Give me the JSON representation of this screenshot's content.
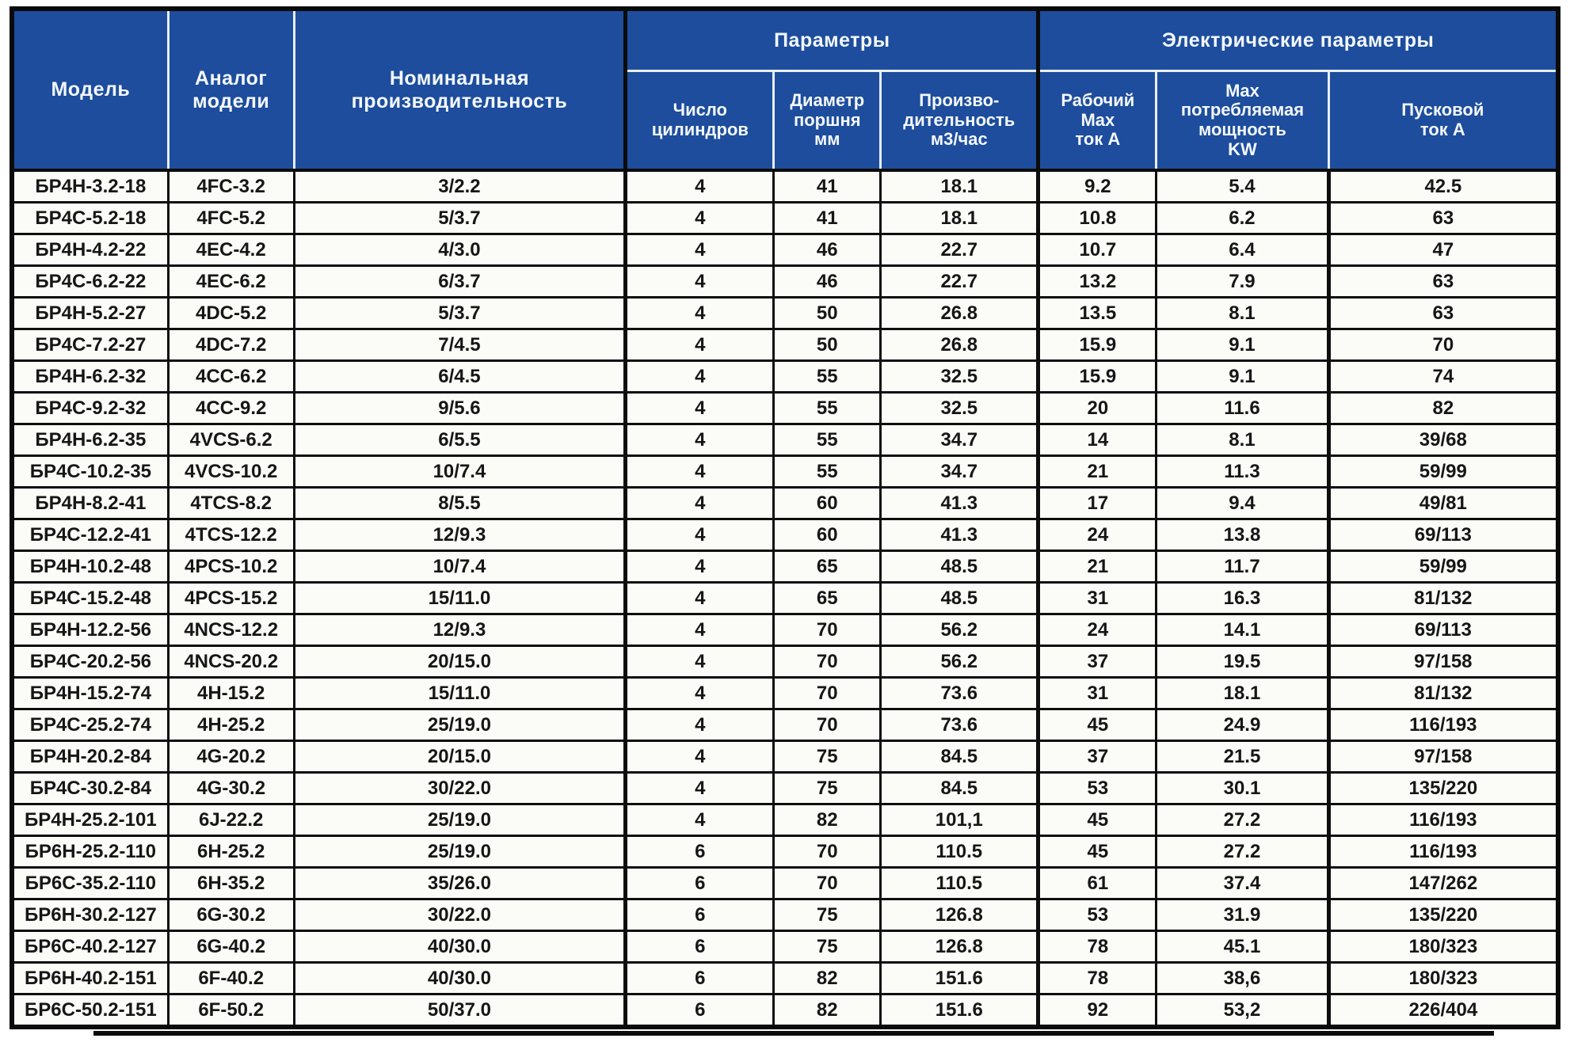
{
  "colors": {
    "header_bg": "#1d4d9c",
    "header_text": "#f4f8ff",
    "row_bg": "#fbfbf7",
    "border": "#0b0b0b"
  },
  "table": {
    "header": {
      "model": "Модель",
      "analog": "Аналог\nмодели",
      "nominal": "Номинальная\nпроизводительность",
      "params_group": "Параметры",
      "electric_group": "Электрические параметры",
      "cylinders": "Число\nцилиндров",
      "piston": "Диаметр\nпоршня\nмм",
      "productivity": "Произво-\nдительность\nм3/час",
      "work_current": "Рабочий\nMax\nток А",
      "max_power": "Max\nпотребляемая\nмощность\nKW",
      "start_current": "Пусковой\nток А"
    },
    "column_keys": [
      "model",
      "analog",
      "nominal",
      "cylinders",
      "piston",
      "productivity",
      "work_current",
      "max_power",
      "start_current"
    ],
    "rows": [
      [
        "БР4Н-3.2-18",
        "4FC-3.2",
        "3/2.2",
        "4",
        "41",
        "18.1",
        "9.2",
        "5.4",
        "42.5"
      ],
      [
        "БР4С-5.2-18",
        "4FC-5.2",
        "5/3.7",
        "4",
        "41",
        "18.1",
        "10.8",
        "6.2",
        "63"
      ],
      [
        "БР4Н-4.2-22",
        "4EC-4.2",
        "4/3.0",
        "4",
        "46",
        "22.7",
        "10.7",
        "6.4",
        "47"
      ],
      [
        "БР4С-6.2-22",
        "4EC-6.2",
        "6/3.7",
        "4",
        "46",
        "22.7",
        "13.2",
        "7.9",
        "63"
      ],
      [
        "БР4Н-5.2-27",
        "4DC-5.2",
        "5/3.7",
        "4",
        "50",
        "26.8",
        "13.5",
        "8.1",
        "63"
      ],
      [
        "БР4С-7.2-27",
        "4DC-7.2",
        "7/4.5",
        "4",
        "50",
        "26.8",
        "15.9",
        "9.1",
        "70"
      ],
      [
        "БР4Н-6.2-32",
        "4CC-6.2",
        "6/4.5",
        "4",
        "55",
        "32.5",
        "15.9",
        "9.1",
        "74"
      ],
      [
        "БР4С-9.2-32",
        "4CC-9.2",
        "9/5.6",
        "4",
        "55",
        "32.5",
        "20",
        "11.6",
        "82"
      ],
      [
        "БР4Н-6.2-35",
        "4VCS-6.2",
        "6/5.5",
        "4",
        "55",
        "34.7",
        "14",
        "8.1",
        "39/68"
      ],
      [
        "БР4С-10.2-35",
        "4VCS-10.2",
        "10/7.4",
        "4",
        "55",
        "34.7",
        "21",
        "11.3",
        "59/99"
      ],
      [
        "БР4Н-8.2-41",
        "4TCS-8.2",
        "8/5.5",
        "4",
        "60",
        "41.3",
        "17",
        "9.4",
        "49/81"
      ],
      [
        "БР4С-12.2-41",
        "4TCS-12.2",
        "12/9.3",
        "4",
        "60",
        "41.3",
        "24",
        "13.8",
        "69/113"
      ],
      [
        "БР4Н-10.2-48",
        "4PCS-10.2",
        "10/7.4",
        "4",
        "65",
        "48.5",
        "21",
        "11.7",
        "59/99"
      ],
      [
        "БР4С-15.2-48",
        "4PCS-15.2",
        "15/11.0",
        "4",
        "65",
        "48.5",
        "31",
        "16.3",
        "81/132"
      ],
      [
        "БР4Н-12.2-56",
        "4NCS-12.2",
        "12/9.3",
        "4",
        "70",
        "56.2",
        "24",
        "14.1",
        "69/113"
      ],
      [
        "БР4С-20.2-56",
        "4NCS-20.2",
        "20/15.0",
        "4",
        "70",
        "56.2",
        "37",
        "19.5",
        "97/158"
      ],
      [
        "БР4Н-15.2-74",
        "4H-15.2",
        "15/11.0",
        "4",
        "70",
        "73.6",
        "31",
        "18.1",
        "81/132"
      ],
      [
        "БР4С-25.2-74",
        "4H-25.2",
        "25/19.0",
        "4",
        "70",
        "73.6",
        "45",
        "24.9",
        "116/193"
      ],
      [
        "БР4Н-20.2-84",
        "4G-20.2",
        "20/15.0",
        "4",
        "75",
        "84.5",
        "37",
        "21.5",
        "97/158"
      ],
      [
        "БР4С-30.2-84",
        "4G-30.2",
        "30/22.0",
        "4",
        "75",
        "84.5",
        "53",
        "30.1",
        "135/220"
      ],
      [
        "БР4Н-25.2-101",
        "6J-22.2",
        "25/19.0",
        "4",
        "82",
        "101,1",
        "45",
        "27.2",
        "116/193"
      ],
      [
        "БР6Н-25.2-110",
        "6H-25.2",
        "25/19.0",
        "6",
        "70",
        "110.5",
        "45",
        "27.2",
        "116/193"
      ],
      [
        "БР6С-35.2-110",
        "6H-35.2",
        "35/26.0",
        "6",
        "70",
        "110.5",
        "61",
        "37.4",
        "147/262"
      ],
      [
        "БР6Н-30.2-127",
        "6G-30.2",
        "30/22.0",
        "6",
        "75",
        "126.8",
        "53",
        "31.9",
        "135/220"
      ],
      [
        "БР6С-40.2-127",
        "6G-40.2",
        "40/30.0",
        "6",
        "75",
        "126.8",
        "78",
        "45.1",
        "180/323"
      ],
      [
        "БР6Н-40.2-151",
        "6F-40.2",
        "40/30.0",
        "6",
        "82",
        "151.6",
        "78",
        "38,6",
        "180/323"
      ],
      [
        "БР6С-50.2-151",
        "6F-50.2",
        "50/37.0",
        "6",
        "82",
        "151.6",
        "92",
        "53,2",
        "226/404"
      ]
    ]
  }
}
